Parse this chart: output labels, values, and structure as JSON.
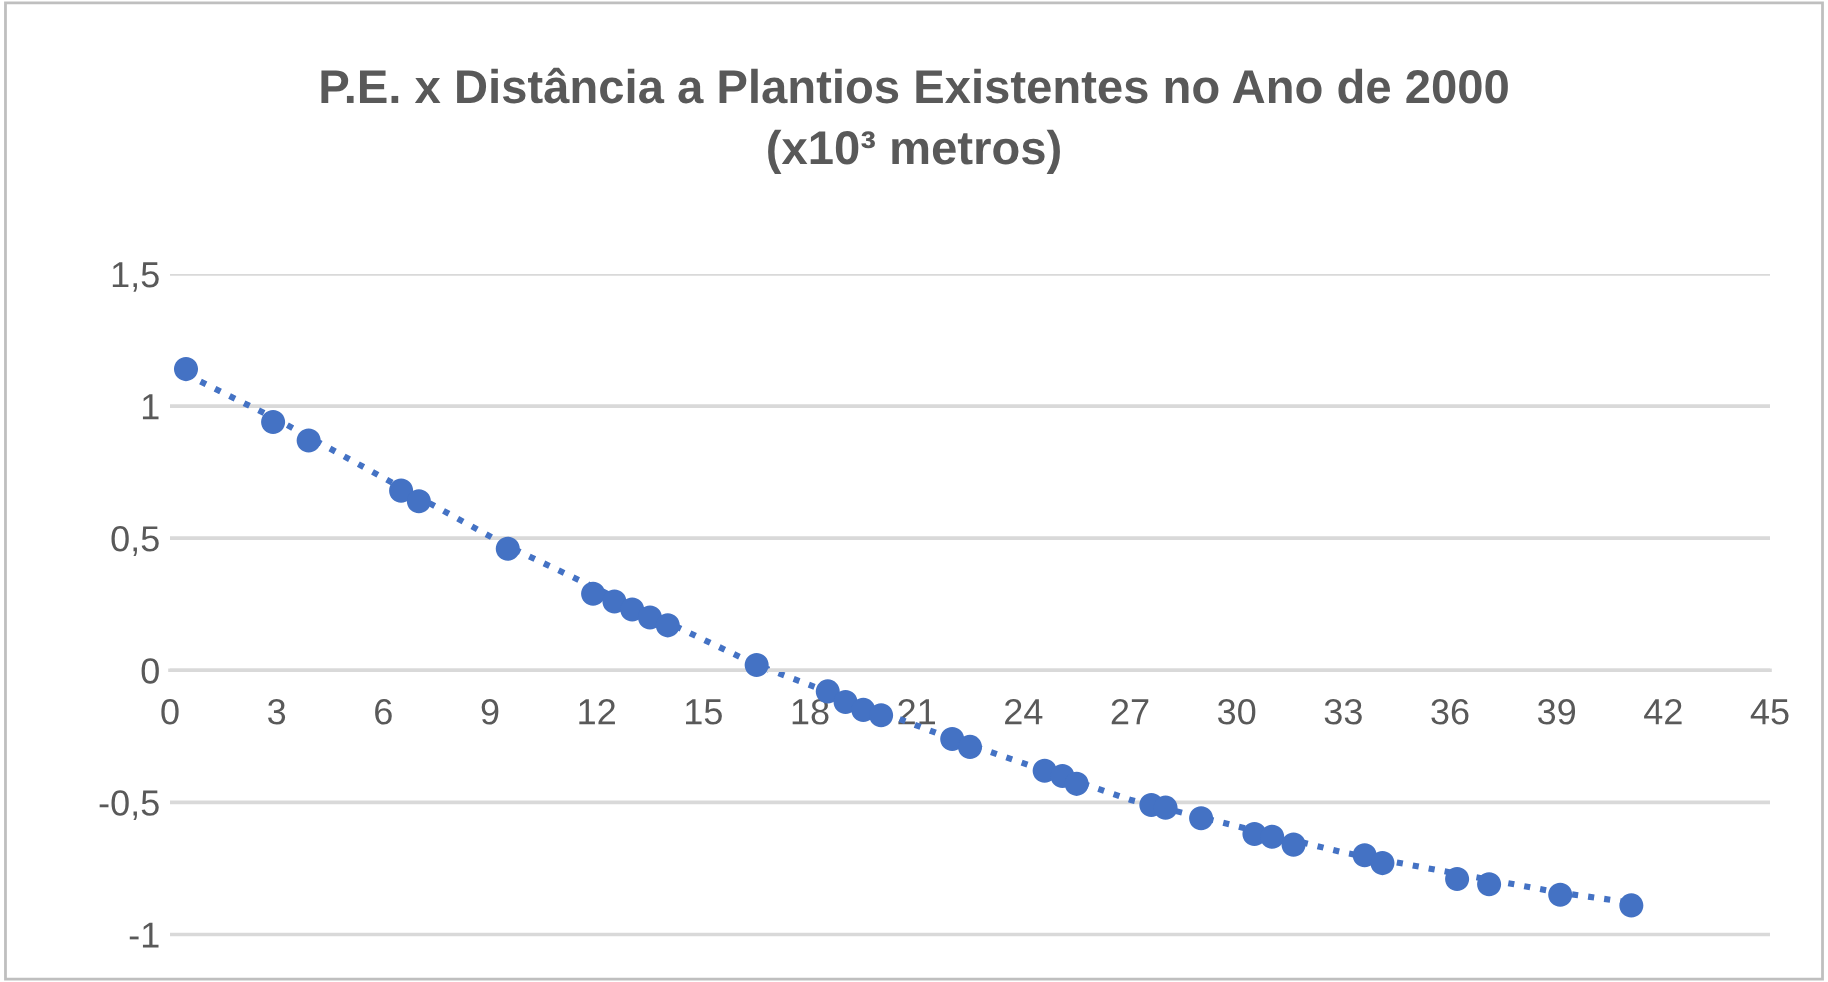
{
  "chart_data": {
    "type": "scatter",
    "title": "P.E. x Distância a Plantios Existentes no Ano de 2000\n(x10³ metros)",
    "xlim": [
      0,
      45
    ],
    "xticks": [
      0,
      3,
      6,
      9,
      12,
      15,
      18,
      21,
      24,
      27,
      30,
      33,
      36,
      39,
      42,
      45
    ],
    "ylim": [
      -1.18,
      1.5
    ],
    "yticks": [
      {
        "value": -1,
        "label": "-1"
      },
      {
        "value": -0.5,
        "label": "-0,5"
      },
      {
        "value": 0,
        "label": "0"
      },
      {
        "value": 0.5,
        "label": "0,5"
      },
      {
        "value": 1,
        "label": "1"
      },
      {
        "value": 1.5,
        "label": "1,5"
      }
    ],
    "grid": "y",
    "series": [
      {
        "color": "#4472c4",
        "marker": "circle",
        "x": [
          0.45,
          2.9,
          3.9,
          6.5,
          7.0,
          9.5,
          11.9,
          12.5,
          13.0,
          13.5,
          14.0,
          16.5,
          18.5,
          19.0,
          19.5,
          20.0,
          22.0,
          22.5,
          24.6,
          25.1,
          25.5,
          27.6,
          28.0,
          29.0,
          30.5,
          31.0,
          31.6,
          33.6,
          34.1,
          36.2,
          37.1,
          39.1,
          41.1
        ],
        "values": [
          1.14,
          0.94,
          0.87,
          0.68,
          0.64,
          0.46,
          0.29,
          0.26,
          0.23,
          0.2,
          0.17,
          0.02,
          -0.08,
          -0.12,
          -0.15,
          -0.17,
          -0.26,
          -0.29,
          -0.38,
          -0.4,
          -0.43,
          -0.51,
          -0.52,
          -0.56,
          -0.62,
          -0.63,
          -0.66,
          -0.7,
          -0.73,
          -0.79,
          -0.81,
          -0.85,
          -0.89
        ]
      },
      {
        "type": "line",
        "color": "#4472c4",
        "line_style": "dotted",
        "marker": "none",
        "x": [
          0.45,
          3,
          9.5,
          16.5,
          22,
          27,
          33,
          39,
          41.1
        ],
        "values": [
          1.12,
          0.95,
          0.47,
          0.02,
          -0.26,
          -0.49,
          -0.69,
          -0.84,
          -0.88
        ]
      }
    ]
  }
}
